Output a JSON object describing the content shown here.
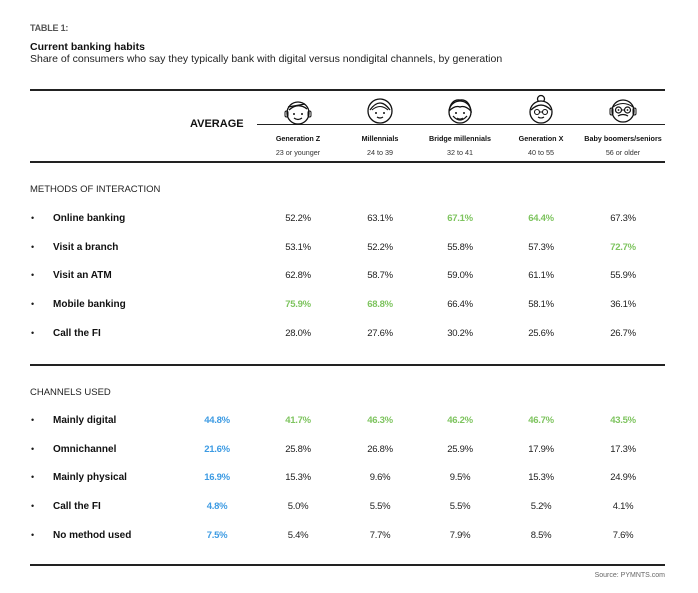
{
  "header": {
    "table_label": "TABLE 1:",
    "title": "Current banking habits",
    "subtitle": "Share of consumers who say they typically bank with digital versus nondigital channels, by generation"
  },
  "columns": {
    "average_label": "AVERAGE",
    "generations": [
      {
        "name": "Generation Z",
        "age": "23 or younger",
        "icon": "gen-z-face-icon"
      },
      {
        "name": "Millennials",
        "age": "24 to 39",
        "icon": "millennial-face-icon"
      },
      {
        "name": "Bridge millennials",
        "age": "32 to 41",
        "icon": "bridge-millennial-face-icon"
      },
      {
        "name": "Generation X",
        "age": "40 to 55",
        "icon": "gen-x-face-icon"
      },
      {
        "name": "Baby boomers/seniors",
        "age": "56 or older",
        "icon": "boomer-face-icon"
      }
    ]
  },
  "colors": {
    "highlight_green": "#7ec45f",
    "average_blue": "#3d9be3"
  },
  "sections": [
    {
      "title": "METHODS OF INTERACTION",
      "rows": [
        {
          "label": "Online banking",
          "average": "",
          "values": [
            "52.2%",
            "63.1%",
            "67.1%",
            "64.4%",
            "67.3%"
          ],
          "highlight": [
            false,
            false,
            true,
            true,
            false
          ]
        },
        {
          "label": "Visit a branch",
          "average": "",
          "values": [
            "53.1%",
            "52.2%",
            "55.8%",
            "57.3%",
            "72.7%"
          ],
          "highlight": [
            false,
            false,
            false,
            false,
            true
          ]
        },
        {
          "label": "Visit an ATM",
          "average": "",
          "values": [
            "62.8%",
            "58.7%",
            "59.0%",
            "61.1%",
            "55.9%"
          ],
          "highlight": [
            false,
            false,
            false,
            false,
            false
          ]
        },
        {
          "label": "Mobile banking",
          "average": "",
          "values": [
            "75.9%",
            "68.8%",
            "66.4%",
            "58.1%",
            "36.1%"
          ],
          "highlight": [
            true,
            true,
            false,
            false,
            false
          ]
        },
        {
          "label": "Call the FI",
          "average": "",
          "values": [
            "28.0%",
            "27.6%",
            "30.2%",
            "25.6%",
            "26.7%"
          ],
          "highlight": [
            false,
            false,
            false,
            false,
            false
          ]
        }
      ]
    },
    {
      "title": "CHANNELS USED",
      "rows": [
        {
          "label": "Mainly digital",
          "average": "44.8%",
          "values": [
            "41.7%",
            "46.3%",
            "46.2%",
            "46.7%",
            "43.5%"
          ],
          "highlight": [
            true,
            true,
            true,
            true,
            true
          ]
        },
        {
          "label": "Omnichannel",
          "average": "21.6%",
          "values": [
            "25.8%",
            "26.8%",
            "25.9%",
            "17.9%",
            "17.3%"
          ],
          "highlight": [
            false,
            false,
            false,
            false,
            false
          ]
        },
        {
          "label": "Mainly physical",
          "average": "16.9%",
          "values": [
            "15.3%",
            "9.6%",
            "9.5%",
            "15.3%",
            "24.9%"
          ],
          "highlight": [
            false,
            false,
            false,
            false,
            false
          ]
        },
        {
          "label": "Call the FI",
          "average": "4.8%",
          "values": [
            "5.0%",
            "5.5%",
            "5.5%",
            "5.2%",
            "4.1%"
          ],
          "highlight": [
            false,
            false,
            false,
            false,
            false
          ]
        },
        {
          "label": "No method used",
          "average": "7.5%",
          "values": [
            "5.4%",
            "7.7%",
            "7.9%",
            "8.5%",
            "7.6%"
          ],
          "highlight": [
            false,
            false,
            false,
            false,
            false
          ]
        }
      ]
    }
  ],
  "footer": {
    "source": "Source: PYMNTS.com"
  }
}
